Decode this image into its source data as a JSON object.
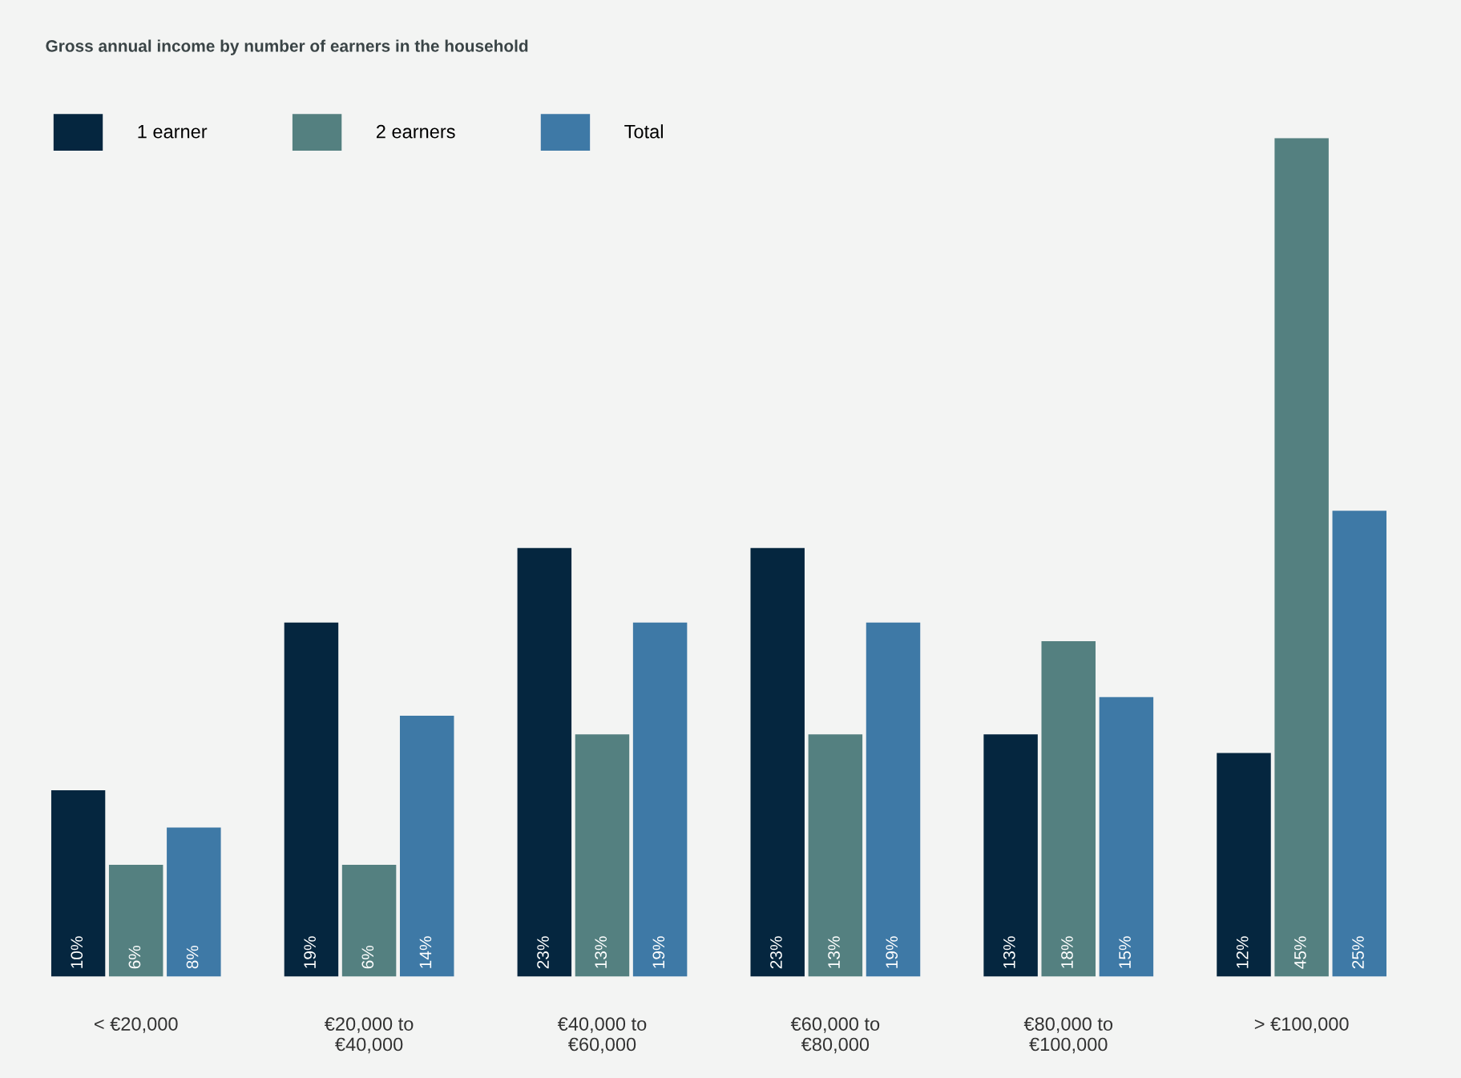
{
  "chart_data": {
    "type": "bar",
    "title": "Gross annual income by number of earners in the household",
    "categories": [
      "< €20,000",
      "€20,000 to\n€40,000",
      "€40,000 to\n€60,000",
      "€60,000 to\n€80,000",
      "€80,000 to\n€100,000",
      "> €100,000"
    ],
    "series": [
      {
        "name": "1 earner",
        "color": "#05263f",
        "values": [
          10,
          19,
          23,
          23,
          13,
          12
        ],
        "value_labels": [
          "10%",
          "19%",
          "23%",
          "23%",
          "13%",
          "12%"
        ]
      },
      {
        "name": "2 earners",
        "color": "#548080",
        "values": [
          6,
          6,
          13,
          13,
          18,
          45
        ],
        "value_labels": [
          "6%",
          "6%",
          "13%",
          "13%",
          "18%",
          "45%"
        ]
      },
      {
        "name": "Total",
        "color": "#3e79a6",
        "values": [
          8,
          14,
          19,
          19,
          15,
          25
        ],
        "value_labels": [
          "8%",
          "14%",
          "19%",
          "19%",
          "15%",
          "25%"
        ]
      }
    ],
    "legend": "top left",
    "grid": false
  }
}
